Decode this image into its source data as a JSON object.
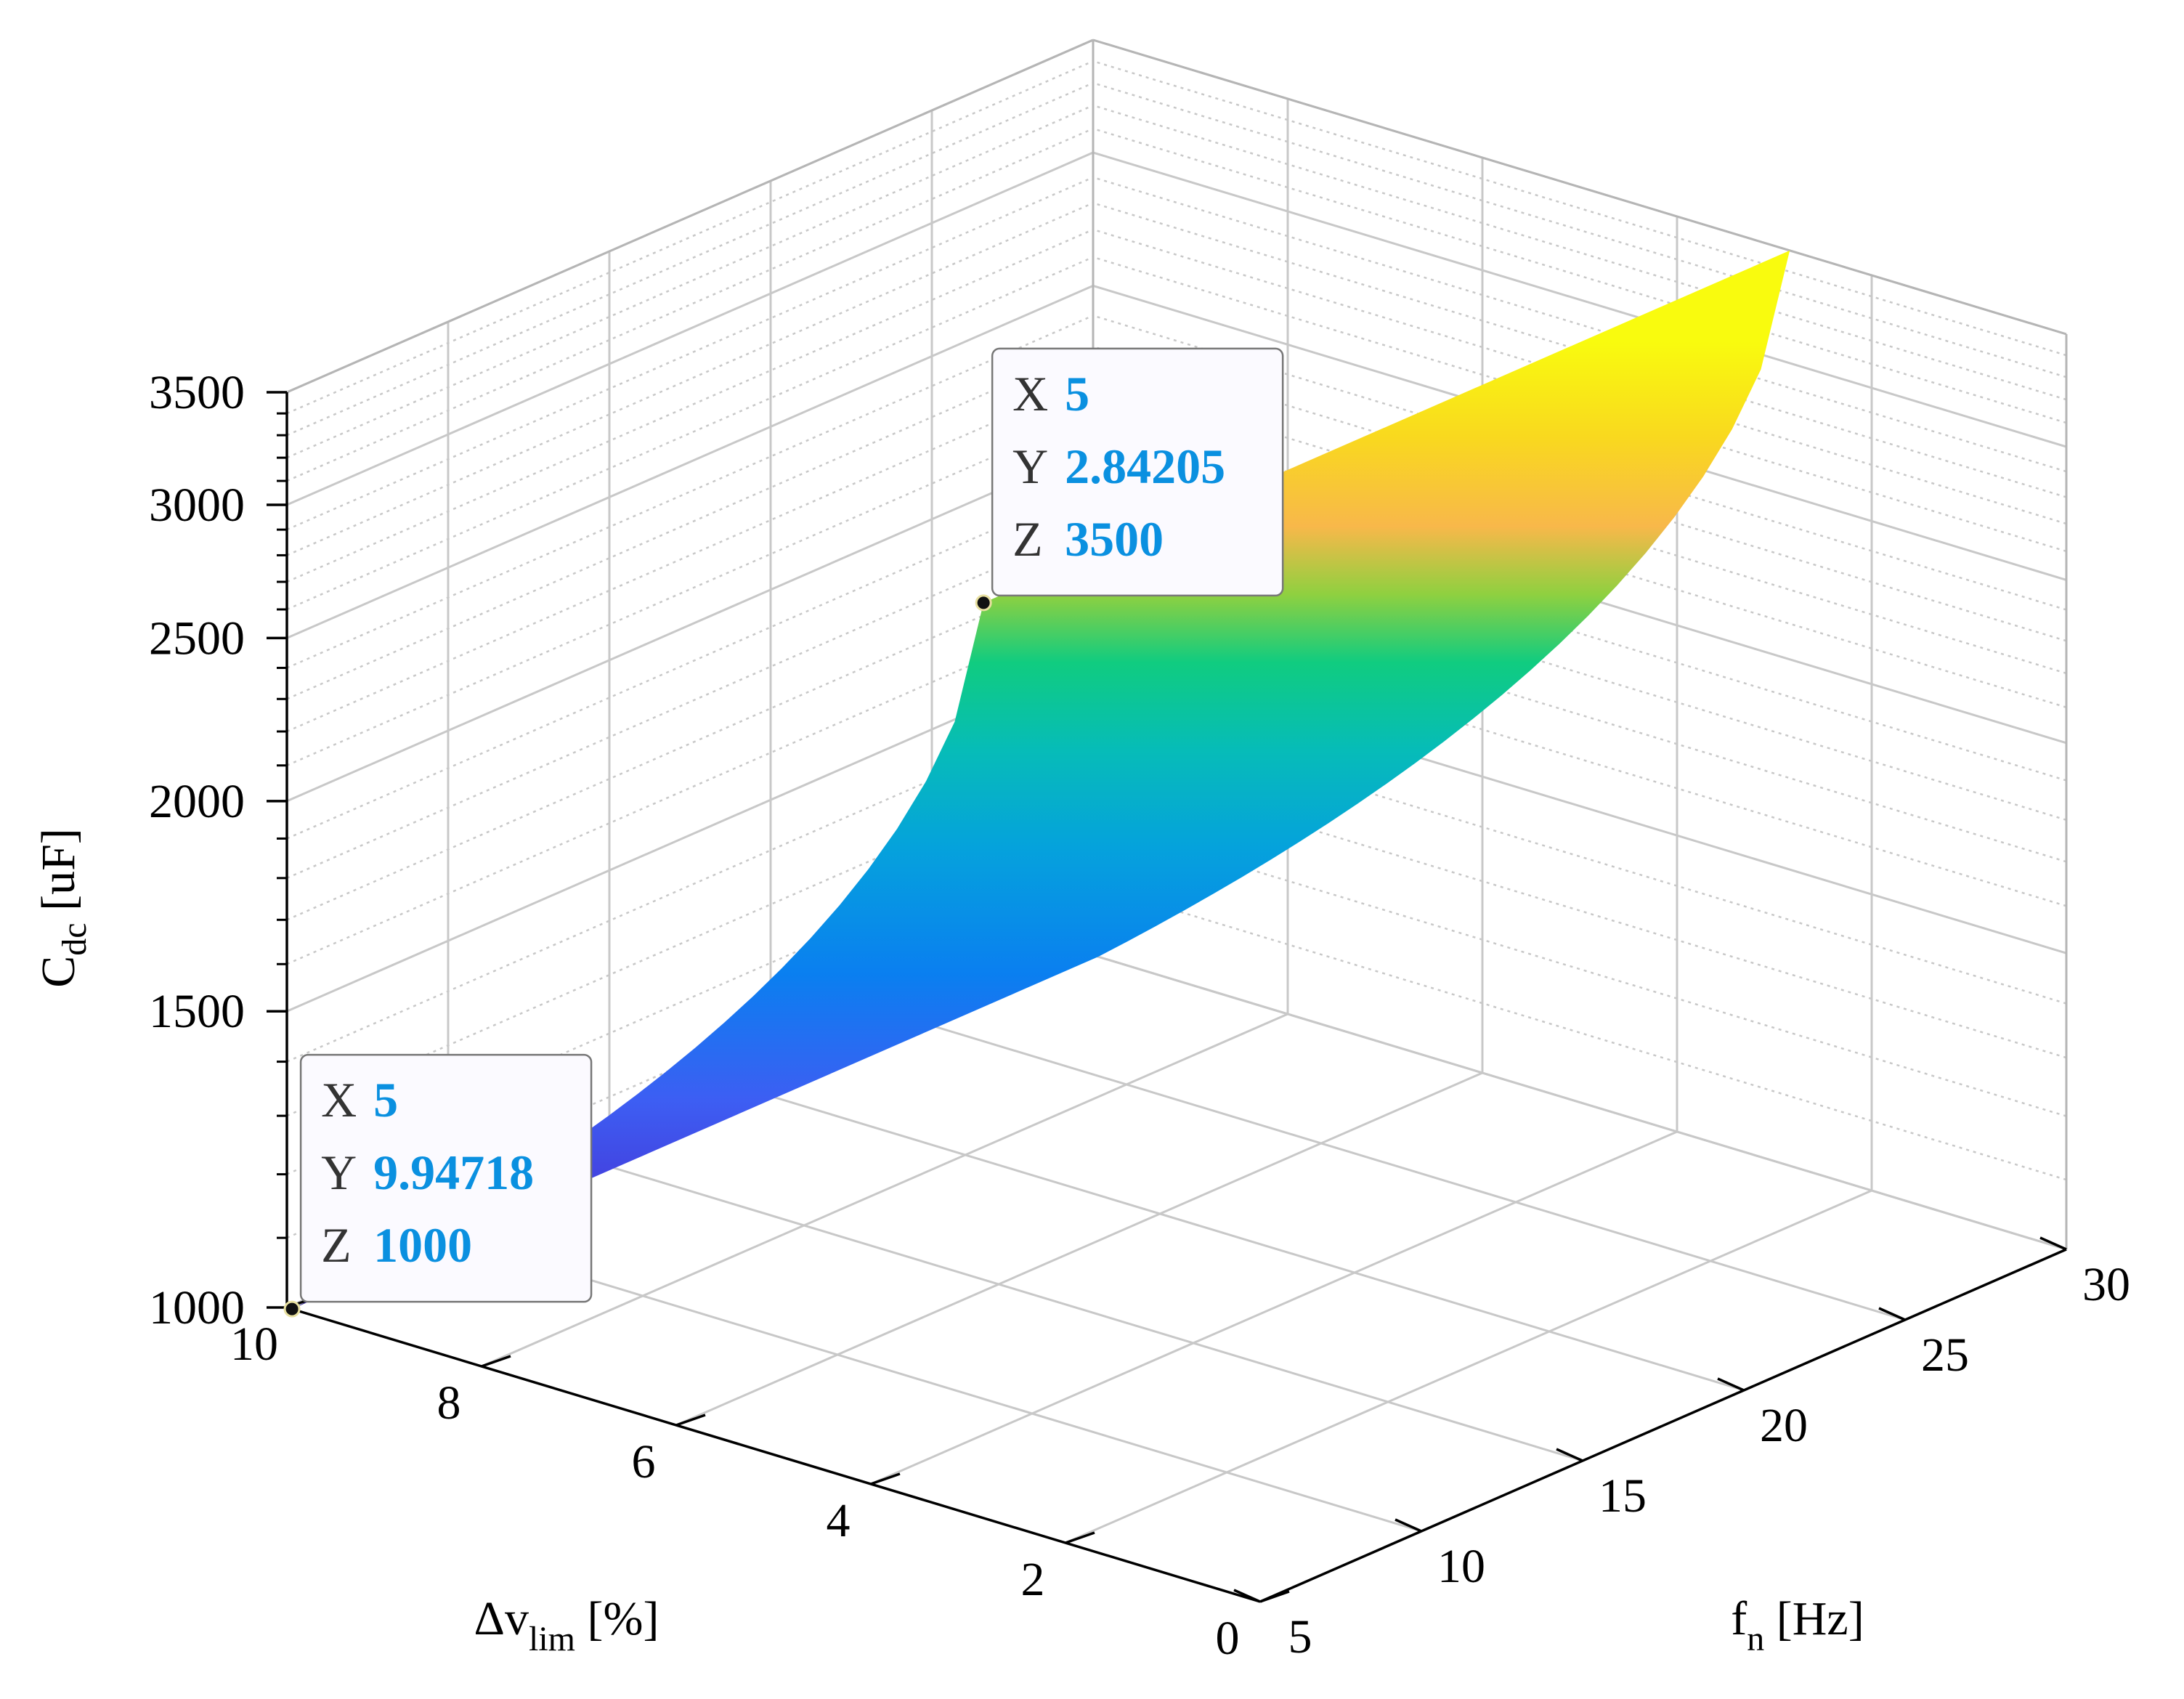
{
  "chart_data": {
    "type": "surface",
    "title": "",
    "x_axis": {
      "label": "f",
      "label_sub": "n",
      "label_unit": " [Hz]",
      "range": [
        5,
        30
      ],
      "ticks": [
        "5",
        "10",
        "15",
        "20",
        "25",
        "30"
      ]
    },
    "y_axis": {
      "label": "Δv",
      "label_sub": "lim",
      "label_unit": " [%]",
      "range": [
        0,
        10
      ],
      "ticks": [
        "0",
        "2",
        "4",
        "6",
        "8",
        "10"
      ]
    },
    "z_axis": {
      "label": "C",
      "label_sub": "dc",
      "label_unit": " [uF]",
      "range": [
        1000,
        3500
      ],
      "scale": "log",
      "ticks": [
        "1000",
        "1500",
        "2000",
        "2500",
        "3000",
        "3500"
      ]
    },
    "surface": {
      "x": [
        5,
        10,
        15,
        20,
        25,
        30
      ],
      "y_min": 2.84205,
      "y_max": 9.94718,
      "z_at_y_max": [
        1000,
        1000,
        1000,
        1000,
        1000,
        1000
      ],
      "z_at_y_min": [
        3500,
        3500,
        3500,
        3500,
        3500,
        3500
      ],
      "colormap": "parula",
      "colorbar": false
    },
    "grid": true,
    "datatips": [
      {
        "x_label": "X",
        "x": "5",
        "y_label": "Y",
        "y": "2.84205",
        "z_label": "Z",
        "z": "3500"
      },
      {
        "x_label": "X",
        "x": "5",
        "y_label": "Y",
        "y": "9.94718",
        "z_label": "Z",
        "z": "1000"
      }
    ],
    "colors": {
      "datatip_value": "#0a90e0",
      "datatip_label": "#333333",
      "grid": "#c8c8c8"
    }
  }
}
